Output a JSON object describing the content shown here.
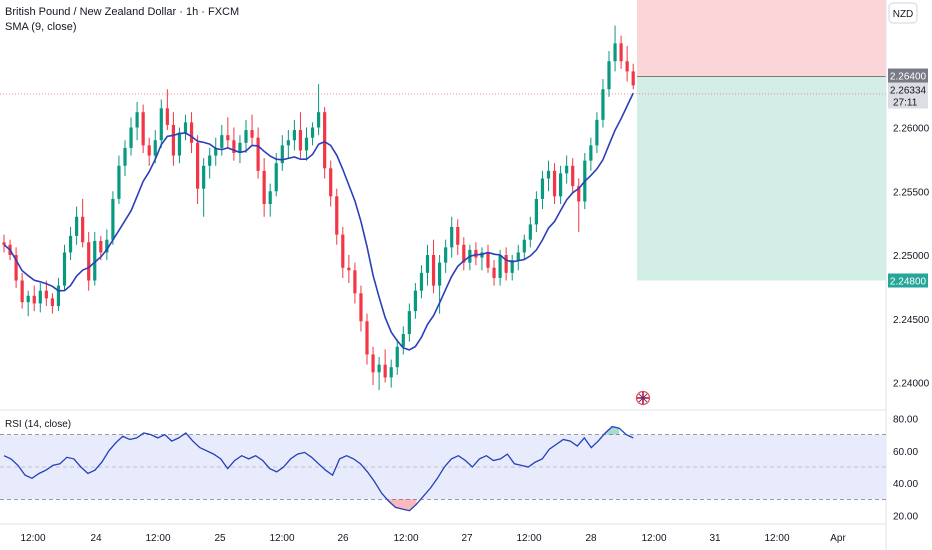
{
  "header": {
    "title": "British Pound / New Zealand Dollar · 1h · FXCM",
    "sma_label": "SMA (9, close)",
    "currency": "NZD"
  },
  "rsi": {
    "label": "RSI (14, close)",
    "levels": {
      "upper": 70,
      "middle": 50,
      "lower": 30
    },
    "ticks": [
      "80.00",
      "60.00",
      "40.00",
      "20.00"
    ],
    "values": [
      57,
      55,
      51,
      45,
      43,
      46,
      48,
      51,
      52,
      56,
      55,
      50,
      46,
      48,
      53,
      60,
      65,
      69,
      67,
      68,
      71,
      70,
      68,
      70,
      66,
      68,
      71,
      66,
      62,
      60,
      58,
      55,
      49,
      54,
      57,
      55,
      57,
      54,
      49,
      47,
      50,
      55,
      58,
      59,
      56,
      52,
      48,
      45,
      55,
      57,
      55,
      52,
      47,
      41,
      34,
      29,
      25,
      24,
      23,
      27,
      32,
      37,
      43,
      50,
      55,
      57,
      54,
      50,
      55,
      57,
      54,
      55,
      58,
      52,
      51,
      50,
      53,
      55,
      61,
      64,
      67,
      66,
      63,
      68,
      62,
      66,
      71,
      75,
      74,
      70,
      68
    ]
  },
  "price_axis": {
    "ticks": [
      "2.26000",
      "2.25500",
      "2.25000",
      "2.24500",
      "2.24000"
    ],
    "current_price": "2.26334",
    "countdown": "27:11",
    "stop_price": "2.26400",
    "target_price": "2.24800"
  },
  "chart_data": {
    "type": "candlestick",
    "symbol": "GBPNZD",
    "interval": "1h",
    "ylim": [
      2.238,
      2.27
    ],
    "x_ticks": [
      "12:00",
      "24",
      "12:00",
      "25",
      "12:00",
      "26",
      "12:00",
      "27",
      "12:00",
      "28",
      "12:00",
      "31",
      "12:00",
      "Apr"
    ],
    "candles": [
      [
        2.251,
        2.2516,
        2.2502,
        2.2508
      ],
      [
        2.2508,
        2.2512,
        2.2496,
        2.25
      ],
      [
        2.25,
        2.2506,
        2.2474,
        2.248
      ],
      [
        2.248,
        2.2486,
        2.2458,
        2.2463
      ],
      [
        2.2463,
        2.2472,
        2.2452,
        2.2468
      ],
      [
        2.2468,
        2.2476,
        2.2456,
        2.2462
      ],
      [
        2.2462,
        2.2478,
        2.2455,
        2.2472
      ],
      [
        2.2472,
        2.248,
        2.246,
        2.2466
      ],
      [
        2.2466,
        2.247,
        2.2454,
        2.246
      ],
      [
        2.246,
        2.2482,
        2.2456,
        2.2476
      ],
      [
        2.2476,
        2.2508,
        2.2472,
        2.2502
      ],
      [
        2.2502,
        2.2522,
        2.2496,
        2.2515
      ],
      [
        2.2515,
        2.2538,
        2.2508,
        2.253
      ],
      [
        2.253,
        2.2544,
        2.2506,
        2.251
      ],
      [
        2.251,
        2.2518,
        2.2472,
        2.248
      ],
      [
        2.248,
        2.2518,
        2.2476,
        2.2511
      ],
      [
        2.2511,
        2.2515,
        2.2496,
        2.2502
      ],
      [
        2.2502,
        2.252,
        2.2496,
        2.2512
      ],
      [
        2.2512,
        2.255,
        2.2508,
        2.2544
      ],
      [
        2.2544,
        2.2578,
        2.254,
        2.257
      ],
      [
        2.257,
        2.259,
        2.2562,
        2.2584
      ],
      [
        2.2584,
        2.2608,
        2.2578,
        2.26
      ],
      [
        2.26,
        2.262,
        2.259,
        2.2612
      ],
      [
        2.2612,
        2.2618,
        2.258,
        2.2586
      ],
      [
        2.2586,
        2.2592,
        2.257,
        2.2578
      ],
      [
        2.2578,
        2.2598,
        2.2572,
        2.259
      ],
      [
        2.259,
        2.2622,
        2.2584,
        2.2615
      ],
      [
        2.2615,
        2.263,
        2.2598,
        2.2602
      ],
      [
        2.2602,
        2.2612,
        2.257,
        2.2578
      ],
      [
        2.2578,
        2.26,
        2.2572,
        2.2596
      ],
      [
        2.2596,
        2.261,
        2.259,
        2.2604
      ],
      [
        2.2604,
        2.2612,
        2.258,
        2.2588
      ],
      [
        2.2588,
        2.2594,
        2.254,
        2.2552
      ],
      [
        2.2552,
        2.2576,
        2.253,
        2.257
      ],
      [
        2.257,
        2.2584,
        2.256,
        2.2578
      ],
      [
        2.2578,
        2.2592,
        2.257,
        2.2584
      ],
      [
        2.2584,
        2.2602,
        2.2578,
        2.2594
      ],
      [
        2.2594,
        2.2608,
        2.2584,
        2.259
      ],
      [
        2.259,
        2.26,
        2.2574,
        2.258
      ],
      [
        2.258,
        2.2594,
        2.2572,
        2.2588
      ],
      [
        2.2588,
        2.2606,
        2.258,
        2.2598
      ],
      [
        2.2598,
        2.261,
        2.2586,
        2.2592
      ],
      [
        2.2592,
        2.26,
        2.256,
        2.2566
      ],
      [
        2.2566,
        2.2576,
        2.253,
        2.254
      ],
      [
        2.254,
        2.2556,
        2.253,
        2.255
      ],
      [
        2.255,
        2.258,
        2.2546,
        2.2572
      ],
      [
        2.2572,
        2.2594,
        2.2566,
        2.2586
      ],
      [
        2.2586,
        2.2598,
        2.2576,
        2.259
      ],
      [
        2.259,
        2.2606,
        2.2582,
        2.2598
      ],
      [
        2.2598,
        2.2612,
        2.2576,
        2.2582
      ],
      [
        2.2582,
        2.26,
        2.2574,
        2.2592
      ],
      [
        2.2592,
        2.2604,
        2.2586,
        2.26
      ],
      [
        2.26,
        2.2634,
        2.2594,
        2.2612
      ],
      [
        2.2612,
        2.2616,
        2.256,
        2.2568
      ],
      [
        2.2568,
        2.2574,
        2.2538,
        2.2546
      ],
      [
        2.2546,
        2.2552,
        2.2508,
        2.2516
      ],
      [
        2.2516,
        2.2522,
        2.2482,
        2.249
      ],
      [
        2.249,
        2.25,
        2.2478,
        2.2488
      ],
      [
        2.2488,
        2.2494,
        2.2462,
        2.247
      ],
      [
        2.247,
        2.2476,
        2.244,
        2.2448
      ],
      [
        2.2448,
        2.2454,
        2.2414,
        2.2422
      ],
      [
        2.2422,
        2.2428,
        2.2398,
        2.2408
      ],
      [
        2.2408,
        2.242,
        2.2394,
        2.2414
      ],
      [
        2.2414,
        2.2426,
        2.24,
        2.2404
      ],
      [
        2.2404,
        2.2418,
        2.2396,
        2.2412
      ],
      [
        2.2412,
        2.2434,
        2.2406,
        2.2428
      ],
      [
        2.2428,
        2.2444,
        2.2422,
        2.2438
      ],
      [
        2.2438,
        2.2462,
        2.2432,
        2.2456
      ],
      [
        2.2456,
        2.2478,
        2.245,
        2.2472
      ],
      [
        2.2472,
        2.2492,
        2.2466,
        2.2486
      ],
      [
        2.2486,
        2.2508,
        2.2476,
        2.25
      ],
      [
        2.25,
        2.2512,
        2.247,
        2.2476
      ],
      [
        2.2476,
        2.25,
        2.2454,
        2.2494
      ],
      [
        2.2494,
        2.2512,
        2.2486,
        2.2506
      ],
      [
        2.2506,
        2.253,
        2.2498,
        2.2522
      ],
      [
        2.2522,
        2.2528,
        2.25,
        2.2508
      ],
      [
        2.2508,
        2.2514,
        2.2488,
        2.2494
      ],
      [
        2.2494,
        2.2508,
        2.2488,
        2.2504
      ],
      [
        2.2504,
        2.251,
        2.2492,
        2.2498
      ],
      [
        2.2498,
        2.2506,
        2.2488,
        2.2502
      ],
      [
        2.2502,
        2.2508,
        2.2486,
        2.249
      ],
      [
        2.249,
        2.2496,
        2.2476,
        2.2482
      ],
      [
        2.2482,
        2.2504,
        2.2476,
        2.25
      ],
      [
        2.25,
        2.2506,
        2.248,
        2.2486
      ],
      [
        2.2486,
        2.25,
        2.248,
        2.2496
      ],
      [
        2.2496,
        2.2508,
        2.2488,
        2.2502
      ],
      [
        2.2502,
        2.2516,
        2.2496,
        2.2512
      ],
      [
        2.2512,
        2.253,
        2.2506,
        2.2524
      ],
      [
        2.2524,
        2.255,
        2.2518,
        2.2544
      ],
      [
        2.2544,
        2.2566,
        2.2536,
        2.256
      ],
      [
        2.256,
        2.2574,
        2.255,
        2.2566
      ],
      [
        2.2566,
        2.2572,
        2.254,
        2.2546
      ],
      [
        2.2546,
        2.257,
        2.254,
        2.2564
      ],
      [
        2.2564,
        2.2578,
        2.2556,
        2.257
      ],
      [
        2.257,
        2.2576,
        2.2548,
        2.2554
      ],
      [
        2.2554,
        2.256,
        2.2518,
        2.2542
      ],
      [
        2.2542,
        2.258,
        2.2536,
        2.2574
      ],
      [
        2.2574,
        2.2592,
        2.2566,
        2.2586
      ],
      [
        2.2586,
        2.2612,
        2.258,
        2.2606
      ],
      [
        2.2606,
        2.2638,
        2.26,
        2.263
      ],
      [
        2.263,
        2.266,
        2.2624,
        2.2652
      ],
      [
        2.2652,
        2.268,
        2.2644,
        2.2666
      ],
      [
        2.2666,
        2.2672,
        2.2646,
        2.2652
      ],
      [
        2.2652,
        2.2664,
        2.2636,
        2.2644
      ],
      [
        2.2644,
        2.265,
        2.263,
        2.2633
      ]
    ],
    "position": {
      "side": "short",
      "stop": 2.264,
      "target": 2.248
    },
    "current_price": 2.26334
  }
}
